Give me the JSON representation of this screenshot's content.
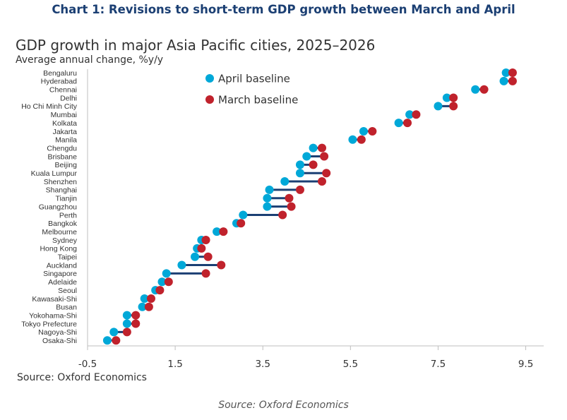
{
  "header": {
    "chart_title": "Chart 1: Revisions to short-term GDP growth between March and April",
    "source_inner": "Source: Oxford Economics",
    "source_outer": "Source: Oxford Economics"
  },
  "colors": {
    "april": "#00a8d8",
    "march": "#c0222c",
    "connector": "#1b3f73",
    "title": "#1b3f73"
  },
  "chart_data": {
    "type": "scatter",
    "subtype": "dumbbell",
    "title": "GDP growth in major Asia Pacific cities, 2025–2026",
    "ylabel": "Average annual change, %y/y",
    "xlim": [
      -0.5,
      10.2
    ],
    "xticks": [
      -0.5,
      1.5,
      3.5,
      5.5,
      7.5,
      9.5
    ],
    "xtick_labels": [
      "-0.5",
      "1.5",
      "3.5",
      "5.5",
      "7.5",
      "9.5"
    ],
    "legend_position": "top-center",
    "grid": false,
    "categories": [
      "Bengaluru",
      "Hyderabad",
      "Chennai",
      "Delhi",
      "Ho Chi Minh City",
      "Mumbai",
      "Kolkata",
      "Jakarta",
      "Manila",
      "Chengdu",
      "Brisbane",
      "Beijing",
      "Kuala Lumpur",
      "Shenzhen",
      "Shanghai",
      "Tianjin",
      "Guangzhou",
      "Perth",
      "Bangkok",
      "Melbourne",
      "Sydney",
      "Hong Kong",
      "Taipei",
      "Auckland",
      "Singapore",
      "Adelaide",
      "Seoul",
      "Kawasaki-Shi",
      "Busan",
      "Yokohama-Shi",
      "Tokyo Prefecture",
      "Nagoya-Shi",
      "Osaka-Shi"
    ],
    "series": [
      {
        "name": "April baseline",
        "color": "#00a8d8",
        "values": [
          9.05,
          9.0,
          8.35,
          7.7,
          7.5,
          6.85,
          6.6,
          5.8,
          5.55,
          4.65,
          4.5,
          4.35,
          4.35,
          4.0,
          3.65,
          3.6,
          3.6,
          3.05,
          2.9,
          2.45,
          2.1,
          2.0,
          1.95,
          1.65,
          1.3,
          1.2,
          1.05,
          0.8,
          0.75,
          0.4,
          0.4,
          0.1,
          -0.05
        ]
      },
      {
        "name": "March baseline",
        "color": "#c0222c",
        "values": [
          9.2,
          9.2,
          8.55,
          7.85,
          7.85,
          7.0,
          6.8,
          6.0,
          5.75,
          4.85,
          4.9,
          4.65,
          4.95,
          4.85,
          4.35,
          4.1,
          4.15,
          3.95,
          3.0,
          2.6,
          2.2,
          2.1,
          2.25,
          2.55,
          2.2,
          1.35,
          1.15,
          0.95,
          0.9,
          0.6,
          0.6,
          0.4,
          0.15
        ]
      }
    ]
  }
}
